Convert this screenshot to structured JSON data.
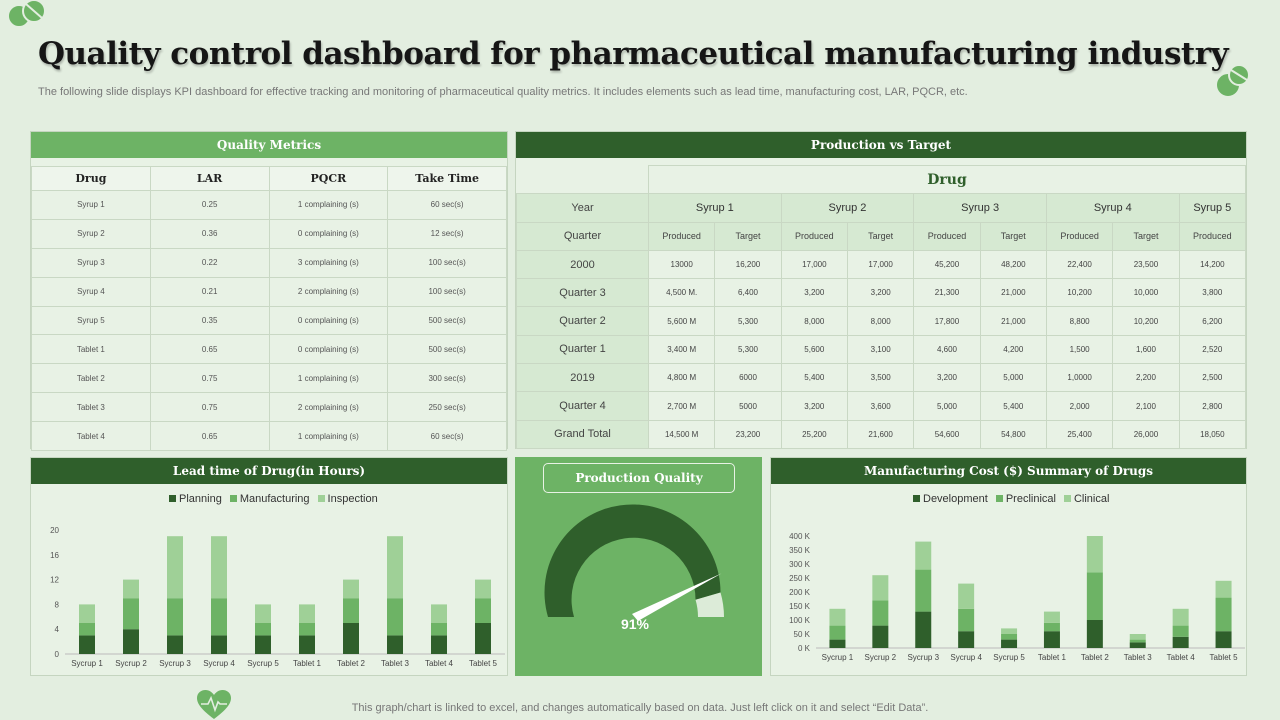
{
  "title": "Quality control dashboard for pharmaceutical manufacturing industry",
  "subtitle": "The following slide displays KPI dashboard for effective tracking and monitoring of pharmaceutical quality metrics. It includes elements such as lead time, manufacturing cost, LAR, PQCR, etc.",
  "footer": "This graph/chart is linked to excel,  and changes automatically based on data. Just left click on it and select “Edit Data”.",
  "colors": {
    "dark": "#2f5f2b",
    "medium": "#6db365",
    "light": "#9fd097",
    "background": "#e3eee0"
  },
  "quality_metrics": {
    "title": "Quality Metrics",
    "headers": [
      "Drug",
      "LAR",
      "PQCR",
      "Take Time"
    ],
    "rows": [
      [
        "Syrup 1",
        "0.25",
        "1 complaining (s)",
        "60 sec(s)"
      ],
      [
        "Syrup 2",
        "0.36",
        "0 complaining (s)",
        "12 sec(s)"
      ],
      [
        "Syrup 3",
        "0.22",
        "3 complaining (s)",
        "100 sec(s)"
      ],
      [
        "Syrup 4",
        "0.21",
        "2 complaining (s)",
        "100 sec(s)"
      ],
      [
        "Syrup 5",
        "0.35",
        "0 complaining (s)",
        "500 sec(s)"
      ],
      [
        "Tablet 1",
        "0.65",
        "0 complaining (s)",
        "500 sec(s)"
      ],
      [
        "Tablet 2",
        "0.75",
        "1 complaining (s)",
        "300 sec(s)"
      ],
      [
        "Tablet 3",
        "0.75",
        "2 complaining (s)",
        "250 sec(s)"
      ],
      [
        "Tablet 4",
        "0.65",
        "1 complaining (s)",
        "60 sec(s)"
      ]
    ]
  },
  "production_target": {
    "title": "Production vs Target",
    "drug_label": "Drug",
    "year_label": "Year",
    "quarter_label": "Quarter",
    "products": [
      "Syrup 1",
      "Syrup 2",
      "Syrup 3",
      "Syrup 4",
      "Syrup 5"
    ],
    "subheaders": [
      "Produced",
      "Target",
      "Produced",
      "Target",
      "Produced",
      "Target",
      "Produced",
      "Target",
      "Produced"
    ],
    "rows": [
      {
        "label": "2000",
        "values": [
          "13000",
          "16,200",
          "17,000",
          "17,000",
          "45,200",
          "48,200",
          "22,400",
          "23,500",
          "14,200"
        ]
      },
      {
        "label": "Quarter 3",
        "values": [
          "4,500  M.",
          "6,400",
          "3,200",
          "3,200",
          "21,300",
          "21,000",
          "10,200",
          "10,000",
          "3,800"
        ]
      },
      {
        "label": "Quarter 2",
        "values": [
          "5,600  M",
          "5,300",
          "8,000",
          "8,000",
          "17,800",
          "21,000",
          "8,800",
          "10,200",
          "6,200"
        ]
      },
      {
        "label": "Quarter 1",
        "values": [
          "3,400  M",
          "5,300",
          "5,600",
          "3,100",
          "4,600",
          "4,200",
          "1,500",
          "1,600",
          "2,520"
        ]
      },
      {
        "label": "2019",
        "values": [
          "4,800  M",
          "6000",
          "5,400",
          "3,500",
          "3,200",
          "5,000",
          "1,0000",
          "2,200",
          "2,500"
        ]
      },
      {
        "label": "Quarter 4",
        "values": [
          "2,700  M",
          "5000",
          "3,200",
          "3,600",
          "5,000",
          "5,400",
          "2,000",
          "2,100",
          "2,800"
        ]
      },
      {
        "label": "Grand Total",
        "values": [
          "14,500  M",
          "23,200",
          "25,200",
          "21,600",
          "54,600",
          "54,800",
          "25,400",
          "26,000",
          "18,050"
        ]
      }
    ]
  },
  "production_quality": {
    "title": "Production Quality",
    "value": 91,
    "value_label": "91%"
  },
  "chart_data": [
    {
      "type": "bar",
      "stacked": true,
      "title": "Lead time of Drug(in Hours)",
      "categories": [
        "Sycrup 1",
        "Sycrup 2",
        "Sycrup 3",
        "Sycrup 4",
        "Sycrup 5",
        "Tablet 1",
        "Tablet 2",
        "Tablet 3",
        "Tablet 4",
        "Tablet 5"
      ],
      "series": [
        {
          "name": "Planning",
          "color": "#2f5f2b",
          "values": [
            3,
            4,
            3,
            3,
            3,
            3,
            5,
            3,
            3,
            5
          ]
        },
        {
          "name": "Manufacturing",
          "color": "#6db365",
          "values": [
            2,
            5,
            6,
            6,
            2,
            2,
            4,
            6,
            2,
            4
          ]
        },
        {
          "name": "Inspection",
          "color": "#9fd097",
          "values": [
            3,
            3,
            10,
            10,
            3,
            3,
            3,
            10,
            3,
            3
          ]
        }
      ],
      "yticks": [
        "0",
        "4",
        "8",
        "12",
        "16",
        "20"
      ],
      "ylim": [
        0,
        22
      ],
      "legend": "top"
    },
    {
      "type": "bar",
      "stacked": true,
      "title": "Manufacturing Cost ($) Summary of Drugs",
      "categories": [
        "Sycrup 1",
        "Sycrup 2",
        "Sycrup 3",
        "Sycrup 4",
        "Sycrup 5",
        "Tablet 1",
        "Tablet 2",
        "Tablet 3",
        "Tablet 4",
        "Tablet 5"
      ],
      "series": [
        {
          "name": "Development",
          "color": "#2f5f2b",
          "values": [
            30,
            80,
            130,
            60,
            30,
            60,
            100,
            20,
            40,
            60
          ]
        },
        {
          "name": "Preclinical",
          "color": "#6db365",
          "values": [
            50,
            90,
            150,
            80,
            20,
            30,
            170,
            10,
            40,
            120
          ]
        },
        {
          "name": "Clinical",
          "color": "#9fd097",
          "values": [
            60,
            90,
            100,
            90,
            20,
            40,
            130,
            20,
            60,
            60
          ]
        }
      ],
      "yticks": [
        "0 K",
        "50 K",
        "100 K",
        "150 K",
        "200 K",
        "250 K",
        "300 K",
        "350 K",
        "400 K"
      ],
      "ylim": [
        0,
        400
      ],
      "legend": "top"
    }
  ]
}
